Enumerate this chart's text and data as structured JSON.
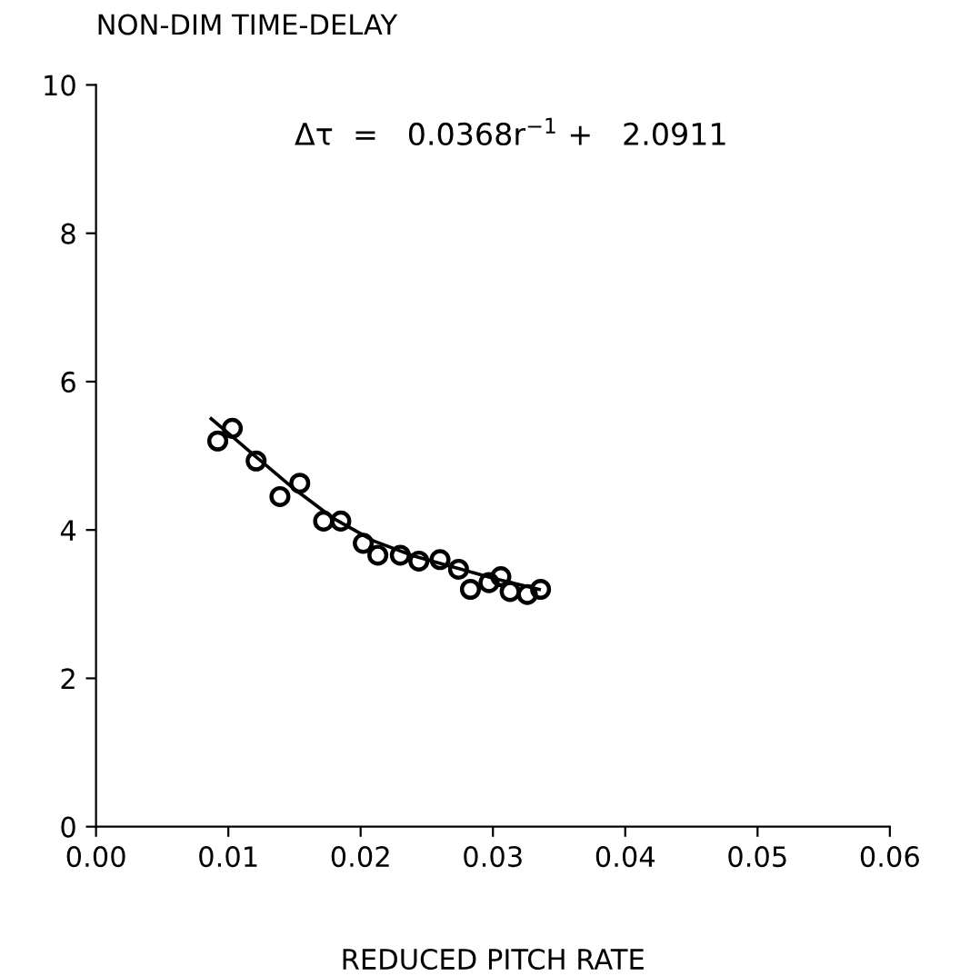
{
  "chart_data": {
    "type": "scatter",
    "xlabel": "REDUCED PITCH RATE",
    "ylabel": "NON-DIM TIME-DELAY",
    "annotations": [
      "Δτ  =   0.0368r$^{−1}$ +   2.0911"
    ],
    "xlim": [
      0,
      0.06
    ],
    "ylim": [
      0,
      10
    ],
    "xticks": [
      {
        "value": 0,
        "label": "0.00"
      },
      {
        "value": 0.01,
        "label": "0.01"
      },
      {
        "value": 0.02,
        "label": "0.02"
      },
      {
        "value": 0.03,
        "label": "0.03"
      },
      {
        "value": 0.04,
        "label": "0.04"
      },
      {
        "value": 0.05,
        "label": "0.05"
      },
      {
        "value": 0.06,
        "label": "0.06"
      }
    ],
    "yticks": [
      0,
      2,
      4,
      6,
      8,
      10
    ],
    "grid": false,
    "legend": false,
    "series": [
      {
        "color": "#000000",
        "marker": "circle",
        "x": [
          0.0092,
          0.0103,
          0.0121,
          0.0154,
          0.0139,
          0.0172,
          0.0185,
          0.0202,
          0.0213,
          0.023,
          0.0244,
          0.026,
          0.0274,
          0.0283,
          0.0297,
          0.0306,
          0.0313,
          0.0326,
          0.0336
        ],
        "values": [
          5.2,
          5.37,
          4.93,
          4.63,
          4.45,
          4.12,
          4.12,
          3.82,
          3.66,
          3.66,
          3.58,
          3.6,
          3.47,
          3.2,
          3.29,
          3.37,
          3.17,
          3.13,
          3.2
        ]
      },
      {
        "type": "line",
        "color": "#000000",
        "marker": "none",
        "line_style": "solid",
        "x": [
          0.0087,
          0.012,
          0.015,
          0.018,
          0.021,
          0.024,
          0.027,
          0.03,
          0.0335
        ],
        "values": [
          5.5,
          5.0,
          4.55,
          4.15,
          3.85,
          3.65,
          3.5,
          3.35,
          3.2
        ]
      }
    ]
  }
}
